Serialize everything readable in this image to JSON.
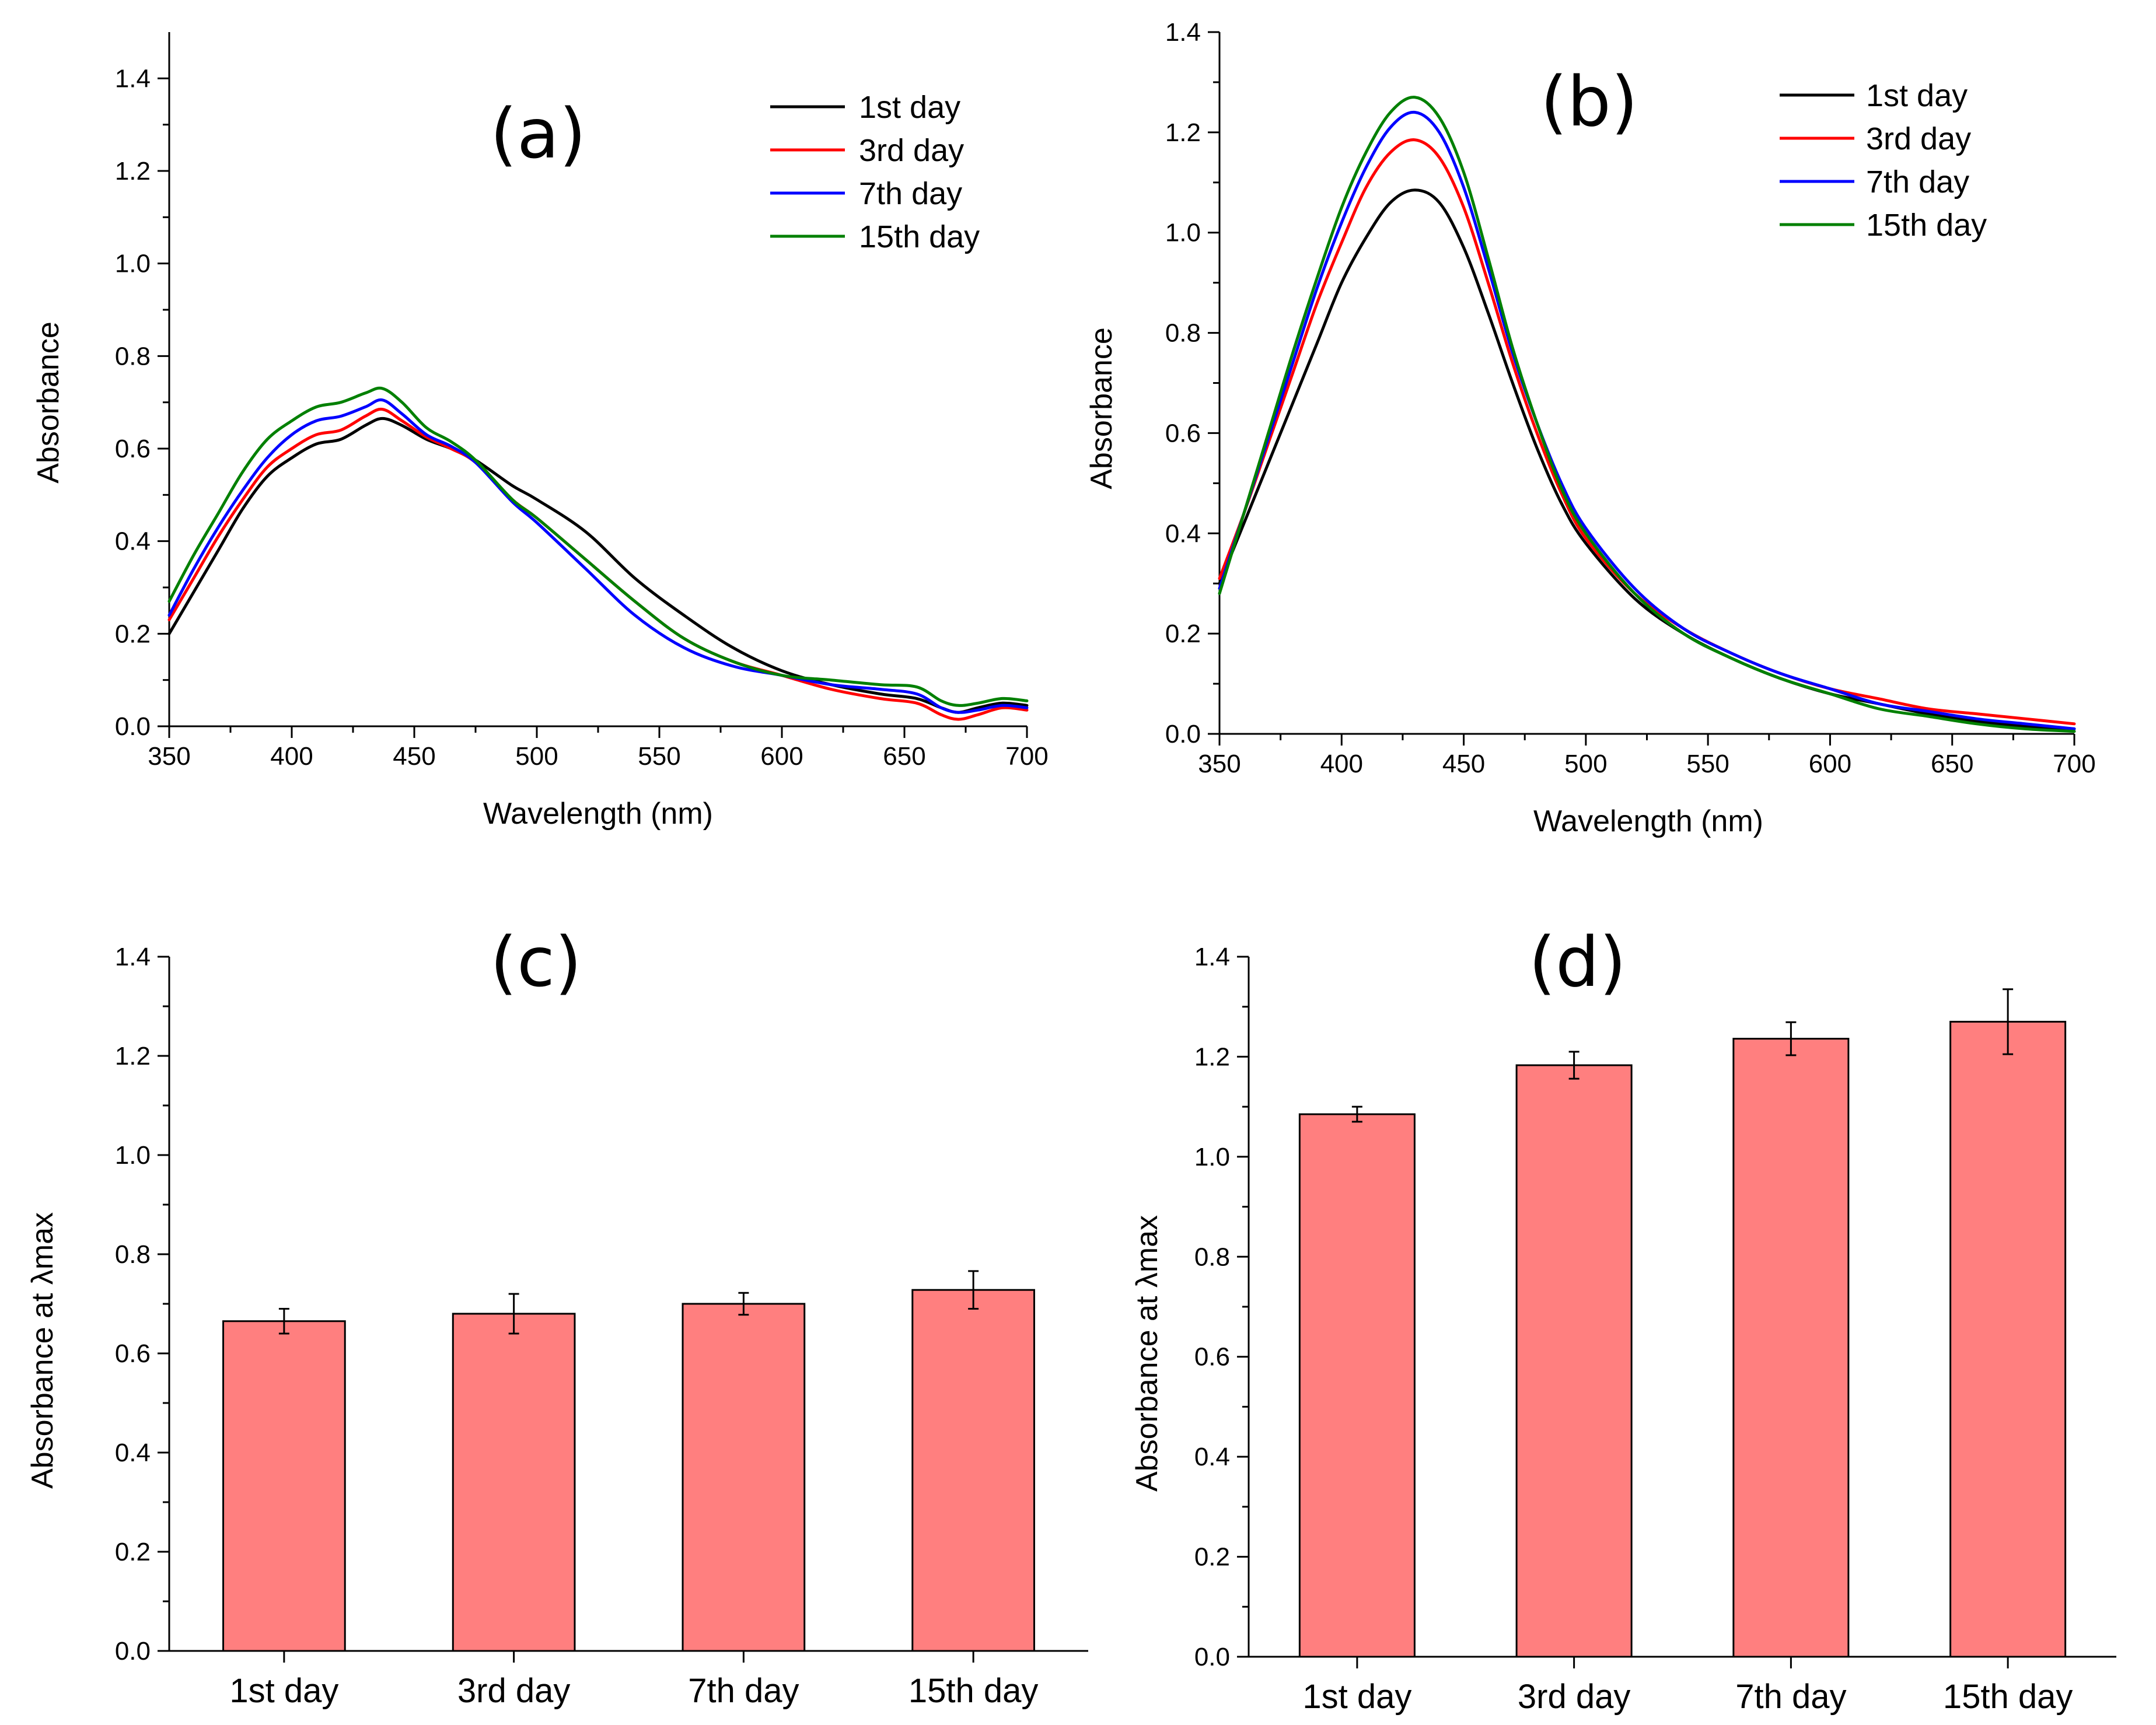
{
  "chart_data": [
    {
      "type": "line",
      "panel_label": "(a)",
      "xlabel": "Wavelength (nm)",
      "ylabel": "Absorbance",
      "xlim": [
        350,
        700
      ],
      "ylim": [
        0.0,
        1.5
      ],
      "xticks": [
        350,
        400,
        450,
        500,
        550,
        600,
        650,
        700
      ],
      "yticks": [
        0.0,
        0.2,
        0.4,
        0.6,
        0.8,
        1.0,
        1.2,
        1.4
      ],
      "legend_position": "top-right",
      "x": [
        350,
        360,
        370,
        380,
        390,
        400,
        410,
        420,
        430,
        437,
        445,
        455,
        465,
        475,
        490,
        500,
        520,
        540,
        560,
        580,
        600,
        620,
        640,
        655,
        665,
        672,
        680,
        690,
        700
      ],
      "series": [
        {
          "name": "1st day",
          "color": "#000000",
          "values": [
            0.2,
            0.29,
            0.38,
            0.47,
            0.54,
            0.58,
            0.61,
            0.62,
            0.65,
            0.665,
            0.65,
            0.62,
            0.6,
            0.575,
            0.52,
            0.49,
            0.42,
            0.32,
            0.24,
            0.17,
            0.12,
            0.09,
            0.07,
            0.06,
            0.04,
            0.03,
            0.04,
            0.05,
            0.045
          ]
        },
        {
          "name": "3rd day",
          "color": "#ff0000",
          "values": [
            0.23,
            0.32,
            0.41,
            0.49,
            0.56,
            0.6,
            0.63,
            0.64,
            0.67,
            0.685,
            0.66,
            0.625,
            0.6,
            0.57,
            0.49,
            0.45,
            0.36,
            0.27,
            0.19,
            0.14,
            0.11,
            0.08,
            0.06,
            0.05,
            0.025,
            0.015,
            0.025,
            0.04,
            0.035
          ]
        },
        {
          "name": "7th day",
          "color": "#0000ff",
          "values": [
            0.24,
            0.34,
            0.43,
            0.51,
            0.58,
            0.63,
            0.66,
            0.67,
            0.69,
            0.705,
            0.675,
            0.63,
            0.605,
            0.57,
            0.485,
            0.44,
            0.34,
            0.24,
            0.17,
            0.13,
            0.11,
            0.09,
            0.08,
            0.07,
            0.04,
            0.03,
            0.035,
            0.045,
            0.04
          ]
        },
        {
          "name": "15th day",
          "color": "#008000",
          "values": [
            0.27,
            0.37,
            0.46,
            0.55,
            0.62,
            0.66,
            0.69,
            0.7,
            0.72,
            0.73,
            0.7,
            0.645,
            0.615,
            0.575,
            0.49,
            0.45,
            0.36,
            0.27,
            0.19,
            0.14,
            0.11,
            0.1,
            0.09,
            0.085,
            0.055,
            0.045,
            0.05,
            0.06,
            0.055
          ]
        }
      ]
    },
    {
      "type": "line",
      "panel_label": "(b)",
      "xlabel": "Wavelength (nm)",
      "ylabel": "Absorbance",
      "xlim": [
        350,
        700
      ],
      "ylim": [
        0.0,
        1.4
      ],
      "xticks": [
        350,
        400,
        450,
        500,
        550,
        600,
        650,
        700
      ],
      "yticks": [
        0.0,
        0.2,
        0.4,
        0.6,
        0.8,
        1.0,
        1.2,
        1.4
      ],
      "legend_position": "top-right",
      "x": [
        350,
        360,
        370,
        380,
        390,
        400,
        410,
        420,
        430,
        440,
        450,
        460,
        470,
        480,
        490,
        500,
        520,
        540,
        560,
        580,
        600,
        620,
        640,
        660,
        680,
        700
      ],
      "series": [
        {
          "name": "1st day",
          "color": "#000000",
          "values": [
            0.3,
            0.42,
            0.54,
            0.66,
            0.78,
            0.9,
            0.99,
            1.06,
            1.085,
            1.06,
            0.97,
            0.84,
            0.7,
            0.57,
            0.46,
            0.38,
            0.27,
            0.2,
            0.15,
            0.11,
            0.08,
            0.06,
            0.04,
            0.025,
            0.015,
            0.01
          ]
        },
        {
          "name": "3rd day",
          "color": "#ff0000",
          "values": [
            0.31,
            0.44,
            0.58,
            0.72,
            0.86,
            0.98,
            1.09,
            1.16,
            1.185,
            1.15,
            1.05,
            0.9,
            0.74,
            0.6,
            0.48,
            0.39,
            0.28,
            0.21,
            0.16,
            0.12,
            0.09,
            0.07,
            0.05,
            0.04,
            0.03,
            0.02
          ]
        },
        {
          "name": "7th day",
          "color": "#0000ff",
          "values": [
            0.29,
            0.44,
            0.59,
            0.74,
            0.89,
            1.02,
            1.13,
            1.21,
            1.24,
            1.2,
            1.09,
            0.93,
            0.76,
            0.62,
            0.5,
            0.41,
            0.29,
            0.21,
            0.16,
            0.12,
            0.09,
            0.06,
            0.045,
            0.03,
            0.02,
            0.01
          ]
        },
        {
          "name": "15th day",
          "color": "#008000",
          "values": [
            0.28,
            0.44,
            0.6,
            0.76,
            0.91,
            1.05,
            1.16,
            1.24,
            1.27,
            1.23,
            1.12,
            0.95,
            0.77,
            0.62,
            0.49,
            0.4,
            0.28,
            0.2,
            0.15,
            0.11,
            0.08,
            0.05,
            0.035,
            0.02,
            0.01,
            0.005
          ]
        }
      ]
    },
    {
      "type": "bar",
      "panel_label": "(c)",
      "xlabel": "",
      "ylabel": "Absorbance at λmax",
      "ylim": [
        0.0,
        1.4
      ],
      "yticks": [
        0.0,
        0.2,
        0.4,
        0.6,
        0.8,
        1.0,
        1.2,
        1.4
      ],
      "categories": [
        "1st day",
        "3rd day",
        "7th day",
        "15th day"
      ],
      "values": [
        0.665,
        0.68,
        0.7,
        0.728
      ],
      "errors": [
        0.025,
        0.04,
        0.022,
        0.038
      ],
      "bar_color": "#ff7f7f"
    },
    {
      "type": "bar",
      "panel_label": "(d)",
      "xlabel": "",
      "ylabel": "Absorbance at λmax",
      "ylim": [
        0.0,
        1.4
      ],
      "yticks": [
        0.0,
        0.2,
        0.4,
        0.6,
        0.8,
        1.0,
        1.2,
        1.4
      ],
      "categories": [
        "1st day",
        "3rd day",
        "7th day",
        "15th day"
      ],
      "values": [
        1.085,
        1.183,
        1.236,
        1.27
      ],
      "errors": [
        0.015,
        0.027,
        0.033,
        0.065
      ],
      "bar_color": "#ff7f7f"
    }
  ]
}
